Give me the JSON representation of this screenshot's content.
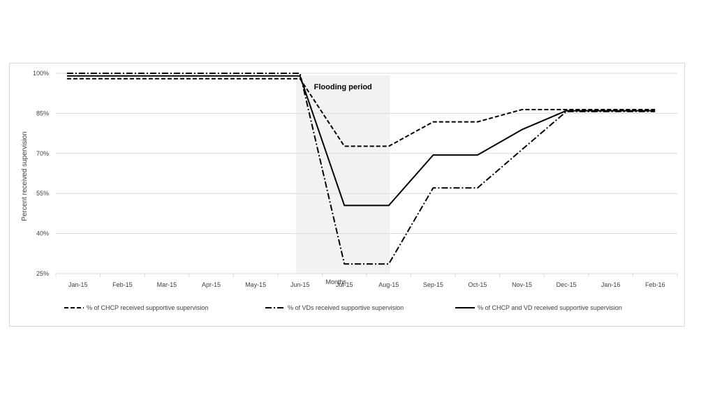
{
  "chart_data": {
    "type": "line",
    "title": "",
    "xlabel": "Months",
    "ylabel": "Percent received supervision",
    "categories": [
      "Jan-15",
      "Feb-15",
      "Mar-15",
      "Apr-15",
      "May-15",
      "Jun-15",
      "Jul-15",
      "Aug-15",
      "Sep-15",
      "Oct-15",
      "Nov-15",
      "Dec-15",
      "Jan-16",
      "Feb-16"
    ],
    "yticks": [
      "25%",
      "40%",
      "55%",
      "70%",
      "85%",
      "100%"
    ],
    "ylim": [
      25,
      100
    ],
    "grid": true,
    "legend_position": "bottom",
    "annotation": {
      "label": "Flooding period",
      "from_category": "Jun-15",
      "to_category": "Aug-15",
      "color": "#f2f2f2"
    },
    "series": [
      {
        "name": "% of CHCP received supportive supervision",
        "style": "dashed",
        "color": "#000000",
        "values": [
          98,
          98,
          98,
          98,
          98,
          98,
          72.7,
          72.7,
          81.8,
          81.8,
          86.4,
          86.4,
          86.4,
          86.4
        ]
      },
      {
        "name": "% of VDs received supportive supervision",
        "style": "dash-dot",
        "color": "#000000",
        "values": [
          100,
          100,
          100,
          100,
          100,
          100,
          28.6,
          28.6,
          57.1,
          57.1,
          71.4,
          85.7,
          85.7,
          85.7
        ]
      },
      {
        "name": "% of CHCP and VD received supportive supervision",
        "style": "solid",
        "color": "#000000",
        "values": [
          99,
          99,
          99,
          99,
          99,
          99,
          50.5,
          50.5,
          69.4,
          69.4,
          78.9,
          86.0,
          86.0,
          86.0
        ]
      }
    ]
  }
}
